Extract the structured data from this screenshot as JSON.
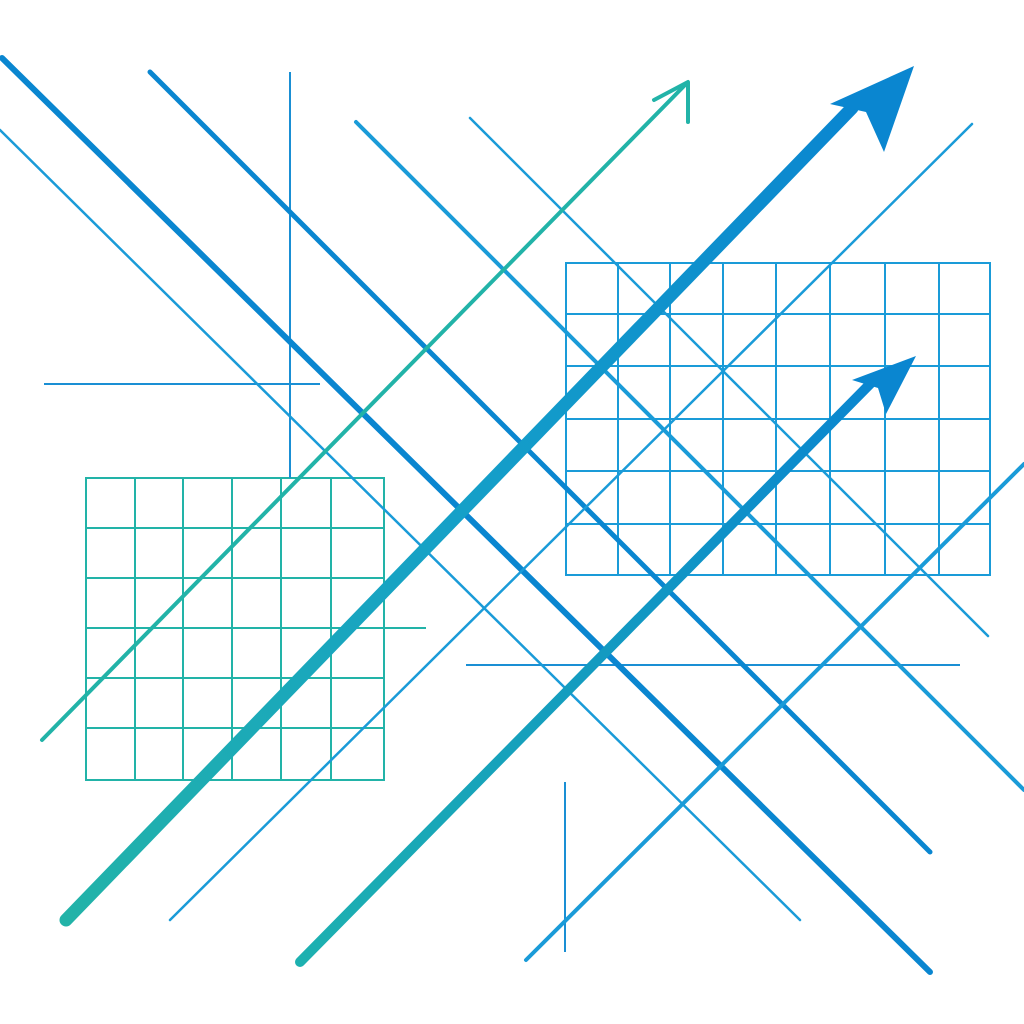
{
  "palette": {
    "background": "#ffffff",
    "blue": "#0a86d0",
    "sky": "#1a9bd8",
    "teal": "#22b3a8",
    "mid": "#14a0c4"
  },
  "motifs": {
    "arrows": [
      "upward-trend-arrow",
      "upward-trend-arrow",
      "upward-trend-arrow"
    ],
    "grids": [
      "teal-grid-panel",
      "blue-grid-panel"
    ],
    "lines": "diagonal-line-pattern"
  }
}
